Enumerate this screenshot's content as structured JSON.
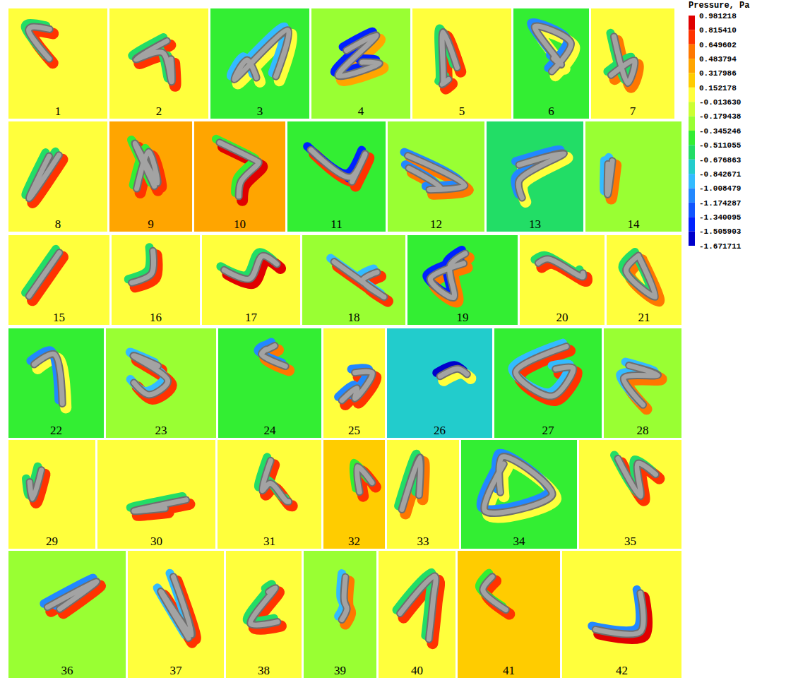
{
  "chart_data": {
    "type": "contour_panels",
    "colorbar": {
      "title": "Pressure, Pa",
      "ticks": [
        0.981218,
        {
          "value": 0.81541,
          "label": "0.815410"
        },
        0.649602,
        0.483794,
        0.317986,
        0.152178,
        {
          "value": -0.01363,
          "label": "-0.013630"
        },
        -0.179438,
        -0.345246,
        -0.511055,
        -0.676863,
        -0.842671,
        -1.008479,
        -1.174287,
        -1.340095,
        -1.505903,
        -1.671711
      ],
      "colors": [
        "#e00000",
        "#ff3300",
        "#ff7700",
        "#ffa500",
        "#ffcc00",
        "#ffff3c",
        "#ccff33",
        "#99ff33",
        "#33ee33",
        "#22dd66",
        "#22cccc",
        "#33bbff",
        "#2288ff",
        "#1155ff",
        "#0022ff",
        "#0000cc"
      ]
    },
    "panels": [
      {
        "label": 1,
        "background": 0.07,
        "high": 0.73,
        "low": -0.6
      },
      {
        "label": 2,
        "background": 0.07,
        "high": 0.73,
        "low": -0.6
      },
      {
        "label": 3,
        "background": -0.43,
        "high": 0.07,
        "low": -0.9
      },
      {
        "label": 4,
        "background": -0.26,
        "high": 0.4,
        "low": -1.4
      },
      {
        "label": 5,
        "background": 0.07,
        "high": 0.73,
        "low": -0.6
      },
      {
        "label": 6,
        "background": -0.43,
        "high": 0.07,
        "low": -1.1
      },
      {
        "label": 7,
        "background": 0.07,
        "high": 0.57,
        "low": -0.6
      },
      {
        "label": 8,
        "background": 0.07,
        "high": 0.73,
        "low": -0.6
      },
      {
        "label": 9,
        "background": 0.4,
        "high": 0.73,
        "low": -0.43
      },
      {
        "label": 10,
        "background": 0.4,
        "high": 0.9,
        "low": -0.43
      },
      {
        "label": 11,
        "background": -0.43,
        "high": 0.73,
        "low": -1.4
      },
      {
        "label": 12,
        "background": -0.26,
        "high": 0.57,
        "low": -1.1
      },
      {
        "label": 13,
        "background": -0.59,
        "high": 0.07,
        "low": -1.1
      },
      {
        "label": 14,
        "background": -0.26,
        "high": 0.57,
        "low": -0.9
      },
      {
        "label": 15,
        "background": 0.07,
        "high": 0.73,
        "low": -0.6
      },
      {
        "label": 16,
        "background": 0.07,
        "high": 0.73,
        "low": -0.6
      },
      {
        "label": 17,
        "background": 0.07,
        "high": 0.9,
        "low": -0.6
      },
      {
        "label": 18,
        "background": -0.26,
        "high": 0.73,
        "low": -0.9
      },
      {
        "label": 19,
        "background": -0.43,
        "high": 0.57,
        "low": -1.4
      },
      {
        "label": 20,
        "background": 0.07,
        "high": 0.73,
        "low": -0.6
      },
      {
        "label": 21,
        "background": 0.07,
        "high": 0.57,
        "low": -0.6
      },
      {
        "label": 22,
        "background": -0.43,
        "high": 0.07,
        "low": -1.1
      },
      {
        "label": 23,
        "background": -0.26,
        "high": 0.73,
        "low": -0.9
      },
      {
        "label": 24,
        "background": -0.43,
        "high": 0.57,
        "low": -1.1
      },
      {
        "label": 25,
        "background": 0.07,
        "high": 0.73,
        "low": -1.1
      },
      {
        "label": 26,
        "background": -0.76,
        "high": 0.07,
        "low": -1.6
      },
      {
        "label": 27,
        "background": -0.43,
        "high": 0.73,
        "low": -0.9
      },
      {
        "label": 28,
        "background": -0.26,
        "high": 0.57,
        "low": -0.9
      },
      {
        "label": 29,
        "background": 0.07,
        "high": 0.73,
        "low": -0.6
      },
      {
        "label": 30,
        "background": 0.07,
        "high": 0.73,
        "low": -0.6
      },
      {
        "label": 31,
        "background": 0.07,
        "high": 0.73,
        "low": -0.6
      },
      {
        "label": 32,
        "background": 0.23,
        "high": 0.73,
        "low": -0.43
      },
      {
        "label": 33,
        "background": 0.07,
        "high": 0.57,
        "low": -0.6
      },
      {
        "label": 34,
        "background": -0.43,
        "high": 0.07,
        "low": -1.1
      },
      {
        "label": 35,
        "background": 0.07,
        "high": 0.73,
        "low": -0.6
      },
      {
        "label": 36,
        "background": -0.26,
        "high": 0.73,
        "low": -1.1
      },
      {
        "label": 37,
        "background": 0.07,
        "high": 0.73,
        "low": -0.9
      },
      {
        "label": 38,
        "background": 0.07,
        "high": 0.73,
        "low": -0.6
      },
      {
        "label": 39,
        "background": -0.26,
        "high": 0.57,
        "low": -0.9
      },
      {
        "label": 40,
        "background": 0.07,
        "high": 0.73,
        "low": -0.6
      },
      {
        "label": 41,
        "background": 0.23,
        "high": 0.73,
        "low": -0.43
      },
      {
        "label": 42,
        "background": 0.07,
        "high": 0.9,
        "low": -1.1
      }
    ]
  }
}
